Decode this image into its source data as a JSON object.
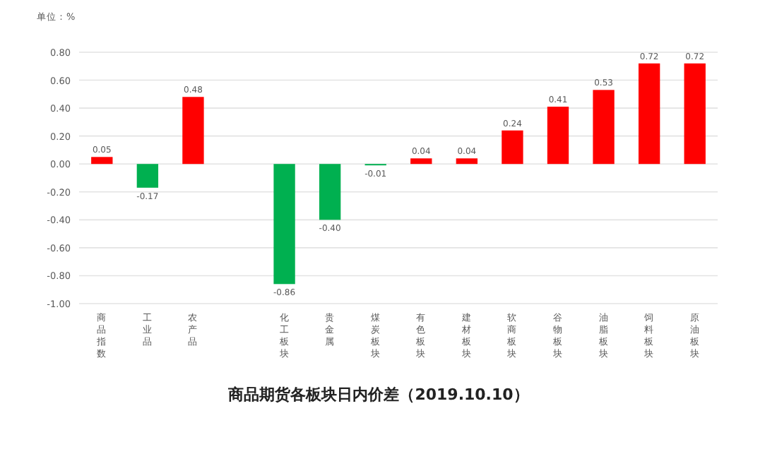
{
  "chart_data": {
    "type": "bar",
    "title": "商品期货各板块日内价差（2019.10.10）",
    "ylabel": "单位：%",
    "categories": [
      "商品指数",
      "工业品",
      "农产品",
      null,
      "化工板块",
      "贵金属",
      "煤炭板块",
      "有色板块",
      "建材板块",
      "软商板块",
      "谷物板块",
      "油脂板块",
      "饲料板块",
      "原油板块"
    ],
    "values": [
      0.05,
      -0.17,
      0.48,
      null,
      -0.86,
      -0.4,
      -0.01,
      0.04,
      0.04,
      0.24,
      0.41,
      0.53,
      0.72,
      0.72
    ],
    "colors": [
      "#ff0000",
      "#00b050",
      "#ff0000",
      null,
      "#00b050",
      "#00b050",
      "#00b050",
      "#ff0000",
      "#ff0000",
      "#ff0000",
      "#ff0000",
      "#ff0000",
      "#ff0000",
      "#ff0000"
    ],
    "ylim": [
      -1.0,
      0.8
    ],
    "yticks": [
      {
        "value": -1.0,
        "label": "-1.00"
      },
      {
        "value": -0.8,
        "label": "-0.80"
      },
      {
        "value": -0.6,
        "label": "-0.60"
      },
      {
        "value": -0.4,
        "label": "-0.40"
      },
      {
        "value": -0.2,
        "label": "-0.20"
      },
      {
        "value": 0,
        "label": "0.00"
      },
      {
        "value": 0.2,
        "label": "0.20"
      },
      {
        "value": 0.4,
        "label": "0.40"
      },
      {
        "value": 0.6,
        "label": "0.60"
      },
      {
        "value": 0.8,
        "label": "0.80"
      }
    ],
    "grid": "y",
    "value_labels": [
      "0.05",
      "-0.17",
      "0.48",
      null,
      "-0.86",
      "-0.40",
      "-0.01",
      "0.04",
      "0.04",
      "0.24",
      "0.41",
      "0.53",
      "0.72",
      "0.72"
    ]
  }
}
